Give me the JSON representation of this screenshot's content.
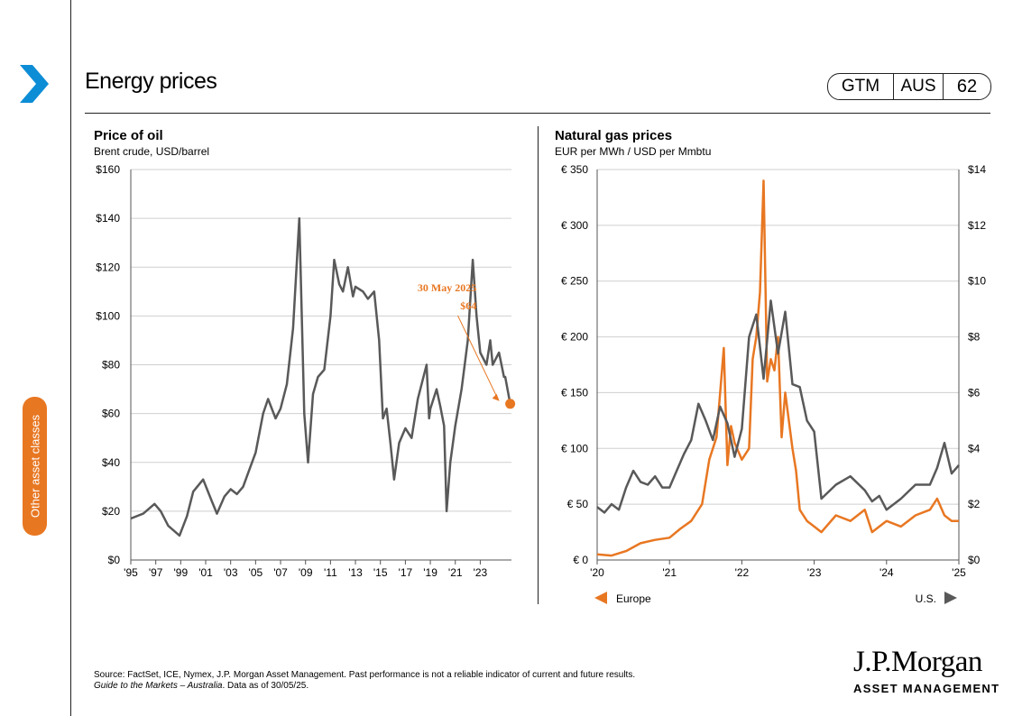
{
  "header": {
    "title": "Energy prices",
    "badge": [
      "GTM",
      "AUS",
      "62"
    ]
  },
  "side_tab": {
    "label": "Other asset classes"
  },
  "colors": {
    "accent": "#e87722",
    "dark_series": "#595959",
    "chevron": "#0d8dd6",
    "gridline": "#cfcfcf"
  },
  "footer": {
    "source": "Source: FactSet, ICE,  Nymex, J.P. Morgan Asset Management. Past performance is not a reliable indicator of current and future results.",
    "guide_italic": "Guide to the Markets – Australia",
    "data_as_of": ". Data as of 30/05/25."
  },
  "logo": {
    "main": "J.P.Morgan",
    "sub": "ASSET MANAGEMENT"
  },
  "chart_data": [
    {
      "type": "line",
      "title": "Price of oil",
      "subtitle": "Brent crude, USD/barrel",
      "x_tick_labels": [
        "'95",
        "'97",
        "'99",
        "'01",
        "'03",
        "'05",
        "'07",
        "'09",
        "'11",
        "'13",
        "'15",
        "'17",
        "'19",
        "'21",
        "'23"
      ],
      "x_tick_years": [
        1995,
        1997,
        1999,
        2001,
        2003,
        2005,
        2007,
        2009,
        2011,
        2013,
        2015,
        2017,
        2019,
        2021,
        2023
      ],
      "xlim": [
        1995,
        2025.5
      ],
      "y_tick_labels": [
        "$0",
        "$20",
        "$40",
        "$60",
        "$80",
        "$100",
        "$120",
        "$140",
        "$160"
      ],
      "ylim": [
        0,
        160
      ],
      "grid": true,
      "series": [
        {
          "color": "#595959",
          "x": [
            1995,
            1996,
            1996.9,
            1997.4,
            1998,
            1998.9,
            1999.5,
            2000,
            2000.8,
            2001.5,
            2001.9,
            2002.5,
            2003,
            2003.5,
            2004,
            2004.5,
            2005,
            2005.6,
            2006,
            2006.6,
            2007,
            2007.5,
            2008,
            2008.5,
            2008.9,
            2009.2,
            2009.6,
            2010,
            2010.5,
            2011,
            2011.3,
            2011.7,
            2012,
            2012.4,
            2012.8,
            2013,
            2013.6,
            2014,
            2014.5,
            2014.9,
            2015.2,
            2015.5,
            2015.8,
            2016.1,
            2016.5,
            2017,
            2017.5,
            2018,
            2018.7,
            2018.9,
            2019,
            2019.5,
            2019.8,
            2020.1,
            2020.3,
            2020.6,
            2021,
            2021.5,
            2022,
            2022.4,
            2022.7,
            2023,
            2023.5,
            2023.8,
            2024,
            2024.5,
            2024.9,
            2025,
            2025.4
          ],
          "y": [
            17,
            19,
            23,
            20,
            14,
            10,
            18,
            28,
            33,
            24,
            19,
            26,
            29,
            27,
            30,
            37,
            44,
            60,
            66,
            58,
            62,
            72,
            95,
            140,
            60,
            40,
            68,
            75,
            78,
            100,
            123,
            113,
            110,
            120,
            108,
            112,
            110,
            107,
            110,
            90,
            58,
            62,
            48,
            33,
            48,
            54,
            50,
            66,
            80,
            58,
            62,
            70,
            63,
            55,
            20,
            40,
            55,
            70,
            90,
            123,
            100,
            85,
            80,
            90,
            80,
            85,
            75,
            75,
            64
          ]
        }
      ],
      "annotation": {
        "date": "30 May 2025",
        "value_label": "$64",
        "x": 2025.4,
        "y": 64
      }
    },
    {
      "type": "line",
      "title": "Natural gas prices",
      "subtitle": "EUR per MWh / USD per Mmbtu",
      "x_tick_labels": [
        "'20",
        "'21",
        "'22",
        "'23",
        "'24",
        "'25"
      ],
      "x_tick_years": [
        2020,
        2021,
        2022,
        2023,
        2024,
        2025
      ],
      "xlim": [
        2020,
        2025
      ],
      "y_tick_labels_left": [
        "€ 0",
        "€ 50",
        "€ 100",
        "€ 150",
        "€ 200",
        "€ 250",
        "€ 300",
        "€ 350"
      ],
      "ylim_left": [
        0,
        350
      ],
      "y_tick_labels_right": [
        "$0",
        "$2",
        "$4",
        "$6",
        "$8",
        "$10",
        "$12",
        "$14"
      ],
      "ylim_right": [
        0,
        14
      ],
      "grid": true,
      "legend": {
        "placement": "bottom",
        "items": [
          "Europe",
          "U.S."
        ]
      },
      "series": [
        {
          "name": "Europe",
          "axis": "left",
          "color": "#e87722",
          "x": [
            2020,
            2020.2,
            2020.4,
            2020.6,
            2020.8,
            2021,
            2021.15,
            2021.3,
            2021.45,
            2021.55,
            2021.65,
            2021.75,
            2021.8,
            2021.85,
            2021.9,
            2022,
            2022.1,
            2022.15,
            2022.2,
            2022.25,
            2022.3,
            2022.35,
            2022.4,
            2022.45,
            2022.5,
            2022.55,
            2022.6,
            2022.7,
            2022.75,
            2022.8,
            2022.85,
            2022.9,
            2023,
            2023.1,
            2023.3,
            2023.5,
            2023.7,
            2023.8,
            2023.9,
            2024,
            2024.2,
            2024.4,
            2024.6,
            2024.7,
            2024.8,
            2024.9,
            2025
          ],
          "y": [
            5,
            4,
            8,
            15,
            18,
            20,
            28,
            35,
            50,
            90,
            110,
            190,
            85,
            120,
            105,
            90,
            100,
            180,
            200,
            240,
            340,
            160,
            180,
            170,
            200,
            110,
            150,
            100,
            80,
            45,
            40,
            35,
            30,
            25,
            40,
            35,
            45,
            25,
            30,
            35,
            30,
            40,
            45,
            55,
            40,
            35,
            35
          ]
        },
        {
          "name": "U.S.",
          "axis": "right",
          "color": "#595959",
          "x": [
            2020,
            2020.1,
            2020.2,
            2020.3,
            2020.4,
            2020.5,
            2020.6,
            2020.7,
            2020.8,
            2020.9,
            2021,
            2021.1,
            2021.2,
            2021.3,
            2021.4,
            2021.5,
            2021.6,
            2021.7,
            2021.8,
            2021.9,
            2022,
            2022.1,
            2022.2,
            2022.3,
            2022.4,
            2022.5,
            2022.6,
            2022.7,
            2022.8,
            2022.9,
            2023,
            2023.1,
            2023.3,
            2023.5,
            2023.7,
            2023.8,
            2023.9,
            2024,
            2024.2,
            2024.4,
            2024.6,
            2024.7,
            2024.8,
            2024.9,
            2025
          ],
          "y": [
            1.9,
            1.7,
            2.0,
            1.8,
            2.6,
            3.2,
            2.8,
            2.7,
            3.0,
            2.6,
            2.6,
            3.2,
            3.8,
            4.3,
            5.6,
            5.0,
            4.3,
            5.5,
            4.9,
            3.7,
            4.7,
            8.0,
            8.8,
            6.5,
            9.3,
            7.4,
            8.9,
            6.3,
            6.2,
            5.0,
            4.6,
            2.2,
            2.7,
            3.0,
            2.5,
            2.1,
            2.3,
            1.8,
            2.2,
            2.7,
            2.7,
            3.3,
            4.2,
            3.1,
            3.4
          ]
        }
      ]
    }
  ]
}
